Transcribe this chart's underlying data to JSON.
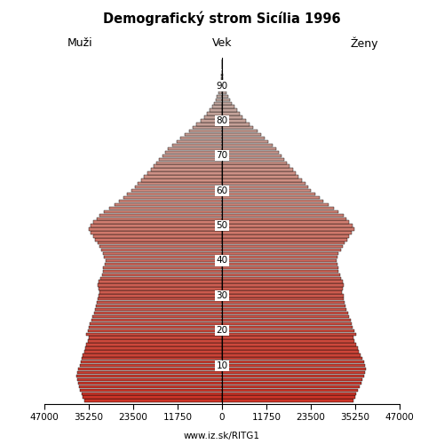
{
  "title": "Demografický strom Sicília 1996",
  "label_left": "Muži",
  "label_center": "Vek",
  "label_right": "Ženy",
  "footer": "www.iz.sk/RITG1",
  "xlim": 47000,
  "xticks_left": [
    47000,
    35250,
    23500,
    11750,
    0
  ],
  "xticks_right": [
    0,
    11750,
    23500,
    35250,
    47000
  ],
  "xtick_labels": [
    "47000",
    "35250",
    "23500",
    "11750",
    "0"
  ],
  "ytick_ages": [
    10,
    20,
    30,
    40,
    50,
    60,
    70,
    80,
    90
  ],
  "background_color": "#ffffff",
  "males": [
    36500,
    36800,
    37200,
    37500,
    37800,
    38100,
    38200,
    38500,
    38300,
    38000,
    37700,
    37400,
    37100,
    36800,
    36500,
    36200,
    35900,
    35600,
    35300,
    36000,
    35500,
    35200,
    34900,
    34600,
    34200,
    33900,
    33600,
    33300,
    33100,
    32900,
    32700,
    32400,
    32600,
    32900,
    32600,
    32200,
    31800,
    31500,
    31400,
    31100,
    30900,
    31200,
    31400,
    31900,
    32400,
    32900,
    33500,
    34100,
    34700,
    35300,
    34800,
    34000,
    33200,
    32400,
    31200,
    29900,
    28500,
    27300,
    26200,
    25100,
    23900,
    23100,
    22300,
    21500,
    20600,
    19700,
    18900,
    18100,
    17400,
    16600,
    15800,
    15100,
    14300,
    13200,
    12100,
    11000,
    9900,
    8800,
    7700,
    6700,
    5700,
    4800,
    4000,
    3300,
    2700,
    2100,
    1700,
    1300,
    950,
    700,
    490,
    330,
    210,
    120,
    70,
    38,
    18,
    8
  ],
  "females": [
    34800,
    35200,
    35600,
    36000,
    36400,
    36800,
    37100,
    37500,
    37800,
    38100,
    37800,
    37500,
    37100,
    36700,
    36300,
    35900,
    35500,
    35100,
    34700,
    35400,
    34900,
    34600,
    34300,
    34000,
    33600,
    33300,
    33000,
    32700,
    32500,
    32300,
    32100,
    31800,
    32000,
    32300,
    32000,
    31600,
    31200,
    30900,
    30800,
    30500,
    30300,
    30600,
    30900,
    31400,
    31900,
    32500,
    33100,
    33700,
    34300,
    35000,
    34500,
    33700,
    32900,
    32100,
    30900,
    29500,
    28100,
    26900,
    25800,
    24700,
    23600,
    22800,
    22000,
    21200,
    20300,
    19500,
    18700,
    17900,
    17200,
    16500,
    15700,
    15000,
    14300,
    13300,
    12300,
    11300,
    10300,
    9300,
    8300,
    7300,
    6300,
    5400,
    4600,
    3900,
    3200,
    2600,
    2100,
    1600,
    1200,
    850,
    580,
    390,
    250,
    150,
    85,
    48,
    25,
    11
  ]
}
